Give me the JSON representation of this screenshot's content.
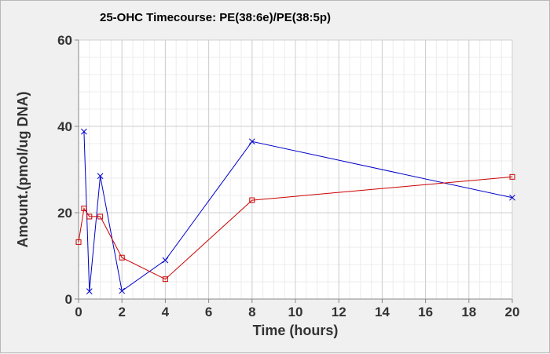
{
  "chart_data": {
    "type": "line",
    "title": "25-OHC Timecourse: PE(38:6e)/PE(38:5p)",
    "xlabel": "Time (hours)",
    "ylabel": "Amount.(pmol/ug DNA)",
    "xlim": [
      0,
      20
    ],
    "ylim": [
      0,
      60
    ],
    "x_ticks": [
      0,
      2,
      4,
      6,
      8,
      10,
      12,
      14,
      16,
      18,
      20
    ],
    "y_ticks": [
      0,
      20,
      40,
      60
    ],
    "grid": true,
    "legend": "none",
    "series": [
      {
        "marker": "cross",
        "color": "#0000cc",
        "x": [
          0.25,
          0.5,
          1,
          2,
          4,
          8,
          20
        ],
        "y": [
          38.8,
          1.8,
          28.5,
          1.9,
          9.0,
          36.5,
          23.5
        ]
      },
      {
        "marker": "square",
        "color": "#cc0000",
        "x": [
          0,
          0.25,
          0.5,
          1,
          2,
          4,
          8,
          20
        ],
        "y": [
          13.2,
          21.0,
          19.1,
          19.1,
          9.6,
          4.6,
          22.9,
          28.3
        ]
      }
    ]
  }
}
